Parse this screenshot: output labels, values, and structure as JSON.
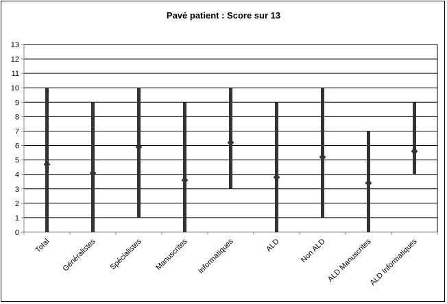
{
  "chart_data": {
    "type": "high-low-mean",
    "title": "Pavé patient : Score sur 13",
    "xlabel": "",
    "ylabel": "",
    "ylim": [
      0,
      13
    ],
    "yticks": [
      0,
      1,
      2,
      3,
      4,
      5,
      6,
      7,
      8,
      9,
      10,
      11,
      12,
      13
    ],
    "grid": true,
    "legend": "none",
    "categories": [
      "Total",
      "Généralistes",
      "Spécialistes",
      "Manuscrites",
      "Informatiques",
      "ALD",
      "Non ALD",
      "ALD Manuscrites",
      "ALD Informatiques"
    ],
    "series": [
      {
        "name": "",
        "role": "max",
        "values": [
          10,
          9,
          10,
          9,
          10,
          9,
          10,
          7,
          9
        ]
      },
      {
        "name": "",
        "role": "min",
        "values": [
          0,
          0,
          1,
          0,
          3,
          0,
          1,
          0,
          4
        ]
      },
      {
        "name": "",
        "role": "mean",
        "values": [
          4.7,
          4.1,
          5.9,
          3.6,
          6.2,
          3.8,
          5.2,
          3.4,
          5.6
        ]
      }
    ],
    "colors": {
      "range_bar": "#333333",
      "mean_marker": "#333333",
      "grid": "#000000",
      "axis": "#888888"
    }
  }
}
